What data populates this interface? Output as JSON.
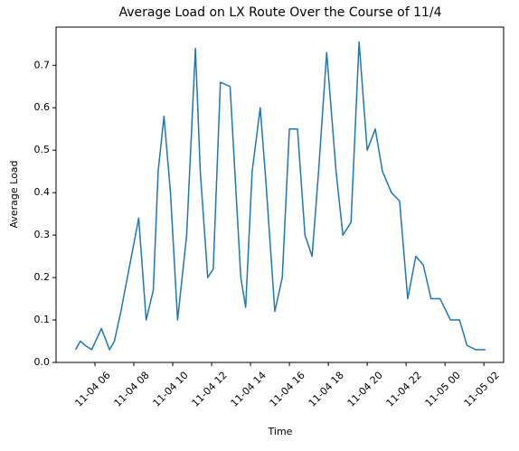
{
  "chart_data": {
    "type": "line",
    "title": "Average Load on LX Route Over the Course of 11/4",
    "x_label": "Time",
    "y_label": "Average Load",
    "x": [
      "11-04 05:00",
      "11-04 05:15",
      "11-04 05:30",
      "11-04 05:50",
      "11-04 06:20",
      "11-04 06:45",
      "11-04 07:00",
      "11-04 07:20",
      "11-04 07:40",
      "11-04 08:00",
      "11-04 08:15",
      "11-04 08:38",
      "11-04 09:00",
      "11-04 09:15",
      "11-04 09:33",
      "11-04 09:53",
      "11-04 10:15",
      "11-04 10:43",
      "11-04 11:10",
      "11-04 11:25",
      "11-04 11:48",
      "11-04 12:05",
      "11-04 12:27",
      "11-04 12:57",
      "11-04 13:30",
      "11-04 13:45",
      "11-04 14:05",
      "11-04 14:30",
      "11-04 14:48",
      "11-04 15:15",
      "11-04 15:38",
      "11-04 16:00",
      "11-04 16:25",
      "11-04 16:48",
      "11-04 17:10",
      "11-04 17:30",
      "11-04 17:55",
      "11-04 18:24",
      "11-04 18:45",
      "11-04 19:10",
      "11-04 19:35",
      "11-04 20:00",
      "11-04 20:25",
      "11-04 20:47",
      "11-04 21:15",
      "11-04 21:40",
      "11-04 22:05",
      "11-04 22:30",
      "11-04 22:53",
      "11-04 23:17",
      "11-04 23:45",
      "11-05 00:17",
      "11-05 00:45",
      "11-05 01:08",
      "11-05 01:35",
      "11-05 01:50",
      "11-05 02:05"
    ],
    "series": [
      {
        "name": "Average Load",
        "color": "#1f77b4",
        "values": [
          0.03,
          0.05,
          0.04,
          0.03,
          0.08,
          0.03,
          0.05,
          0.12,
          0.2,
          0.28,
          0.34,
          0.1,
          0.17,
          0.45,
          0.58,
          0.4,
          0.1,
          0.3,
          0.74,
          0.45,
          0.2,
          0.22,
          0.66,
          0.65,
          0.2,
          0.13,
          0.45,
          0.6,
          0.42,
          0.12,
          0.2,
          0.55,
          0.55,
          0.3,
          0.25,
          0.45,
          0.73,
          0.45,
          0.3,
          0.33,
          0.755,
          0.5,
          0.55,
          0.45,
          0.4,
          0.38,
          0.15,
          0.25,
          0.23,
          0.15,
          0.15,
          0.1,
          0.1,
          0.04,
          0.03,
          0.03,
          0.03
        ]
      }
    ],
    "xlim": [
      "11-04 04:00",
      "11-05 03:01"
    ],
    "xticks": [
      {
        "value": "11-04 06:00",
        "label": "11-04 06"
      },
      {
        "value": "11-04 08:00",
        "label": "11-04 08"
      },
      {
        "value": "11-04 10:00",
        "label": "11-04 10"
      },
      {
        "value": "11-04 12:00",
        "label": "11-04 12"
      },
      {
        "value": "11-04 14:00",
        "label": "11-04 14"
      },
      {
        "value": "11-04 16:00",
        "label": "11-04 16"
      },
      {
        "value": "11-04 18:00",
        "label": "11-04 18"
      },
      {
        "value": "11-04 20:00",
        "label": "11-04 20"
      },
      {
        "value": "11-04 22:00",
        "label": "11-04 22"
      },
      {
        "value": "11-05 00:00",
        "label": "11-05 00"
      },
      {
        "value": "11-05 02:00",
        "label": "11-05 02"
      }
    ],
    "ylim": [
      0,
      0.79
    ],
    "yticks": [
      {
        "value": 0,
        "label": "0.0"
      },
      0.1,
      0.2,
      0.3,
      0.4,
      0.5,
      0.6,
      0.7
    ],
    "grid": false
  }
}
